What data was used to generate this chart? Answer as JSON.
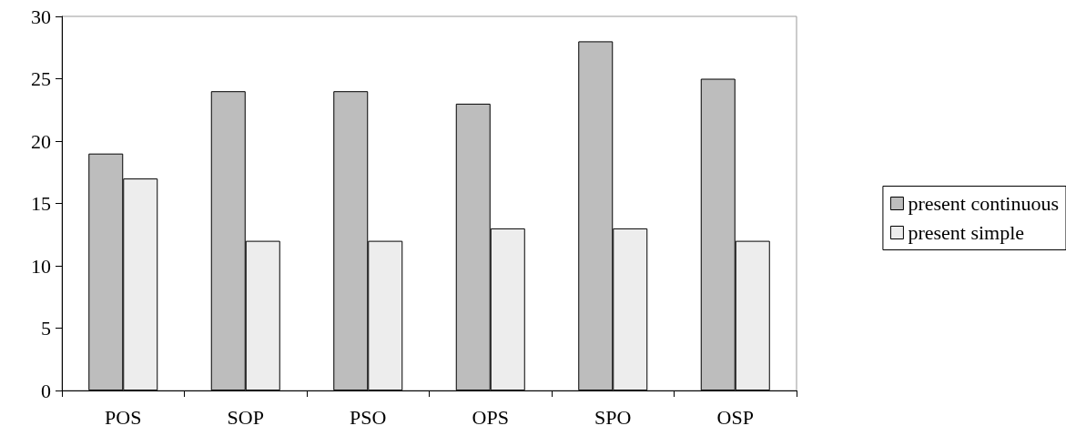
{
  "chart_data": {
    "type": "bar",
    "categories": [
      "POS",
      "SOP",
      "PSO",
      "OPS",
      "SPO",
      "OSP"
    ],
    "series": [
      {
        "name": "present continuous",
        "color": "#bdbdbd",
        "values": [
          19,
          24,
          24,
          23,
          28,
          25
        ]
      },
      {
        "name": "present simple",
        "color": "#ededed",
        "values": [
          17,
          12,
          12,
          13,
          13,
          12
        ]
      }
    ],
    "ylim": [
      0,
      30
    ],
    "yticks": [
      0,
      5,
      10,
      15,
      20,
      25,
      30
    ],
    "grid": false,
    "legend": "right"
  }
}
